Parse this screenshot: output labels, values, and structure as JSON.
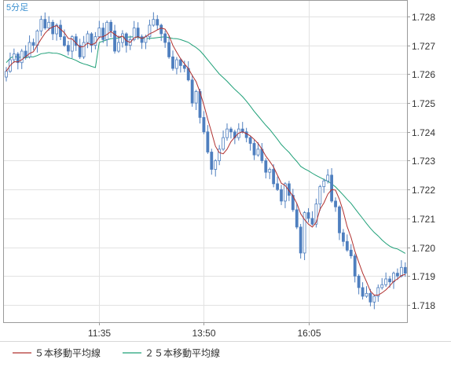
{
  "chart_data": {
    "type": "candlestick",
    "interval_label": "5分足",
    "y_ticks": [
      "1.728",
      "1.727",
      "1.726",
      "1.725",
      "1.724",
      "1.723",
      "1.722",
      "1.721",
      "1.720",
      "1.719",
      "1.718"
    ],
    "ylim": [
      1.7175,
      1.7285
    ],
    "x_ticks": [
      {
        "label": "11:35",
        "index": 24
      },
      {
        "label": "13:50",
        "index": 51
      },
      {
        "label": "16:05",
        "index": 78
      }
    ],
    "candle_count": 104,
    "grid": true,
    "legend_position": "bottom-left",
    "colors": {
      "up": "#ffffff",
      "down": "#4f7fbf",
      "outline": "#4f7fbf",
      "ma5": "#b0302f",
      "ma25": "#1fa078"
    },
    "closes": [
      1.7261,
      1.7265,
      1.7267,
      1.7264,
      1.7268,
      1.7266,
      1.7271,
      1.727,
      1.7275,
      1.7279,
      1.7276,
      1.7278,
      1.7274,
      1.7277,
      1.7273,
      1.727,
      1.7268,
      1.7273,
      1.727,
      1.7266,
      1.7271,
      1.7274,
      1.727,
      1.7273,
      1.7276,
      1.7272,
      1.7278,
      1.7275,
      1.7268,
      1.7271,
      1.7274,
      1.727,
      1.7272,
      1.7276,
      1.7273,
      1.7271,
      1.7273,
      1.7277,
      1.7279,
      1.7277,
      1.7274,
      1.7271,
      1.7266,
      1.7262,
      1.7265,
      1.7263,
      1.7262,
      1.7258,
      1.725,
      1.7254,
      1.7245,
      1.724,
      1.7233,
      1.7227,
      1.723,
      1.7234,
      1.7238,
      1.7241,
      1.724,
      1.7238,
      1.7241,
      1.724,
      1.7238,
      1.7236,
      1.7232,
      1.7234,
      1.723,
      1.7226,
      1.7227,
      1.7222,
      1.722,
      1.7216,
      1.7222,
      1.7218,
      1.7213,
      1.7207,
      1.7198,
      1.7212,
      1.721,
      1.7208,
      1.7215,
      1.7221,
      1.7223,
      1.7225,
      1.7216,
      1.7214,
      1.7205,
      1.7202,
      1.7199,
      1.7197,
      1.719,
      1.7186,
      1.7183,
      1.7184,
      1.7181,
      1.7183,
      1.7186,
      1.7187,
      1.7189,
      1.7188,
      1.7191,
      1.719,
      1.7193,
      1.7191
    ]
  },
  "legend": [
    {
      "label": "５本移動平均線"
    },
    {
      "label": "２５本移動平均線"
    }
  ]
}
